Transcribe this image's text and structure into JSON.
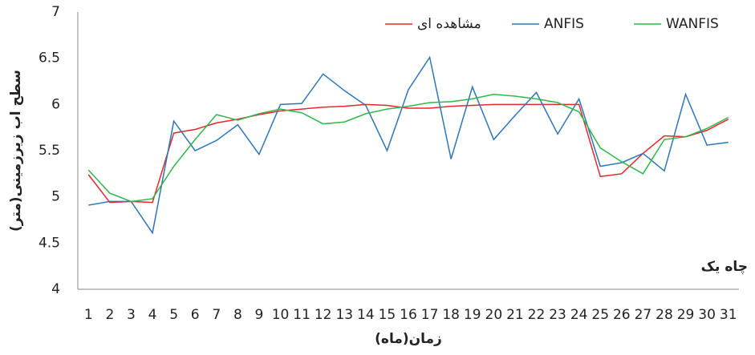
{
  "chart_data": {
    "type": "line",
    "annotation": "چاه یک",
    "x_label": "زمان(ماه)",
    "y_label": "سطح اب زیرزمینی(متر)",
    "categories": [
      "1",
      "2",
      "3",
      "4",
      "5",
      "6",
      "7",
      "8",
      "9",
      "10",
      "11",
      "12",
      "13",
      "14",
      "15",
      "16",
      "17",
      "18",
      "19",
      "20",
      "21",
      "22",
      "23",
      "24",
      "25",
      "26",
      "27",
      "28",
      "29",
      "30",
      "31"
    ],
    "series": [
      {
        "name": "مشاهده ای",
        "color": "#e8262b",
        "values": [
          5.24,
          4.94,
          4.95,
          4.94,
          5.69,
          5.73,
          5.8,
          5.84,
          5.89,
          5.93,
          5.95,
          5.97,
          5.98,
          6.0,
          5.99,
          5.96,
          5.96,
          5.98,
          5.99,
          6.0,
          6.0,
          6.0,
          6.0,
          6.0,
          5.22,
          5.25,
          5.47,
          5.66,
          5.65,
          5.72,
          5.84
        ]
      },
      {
        "name": "ANFIS",
        "color": "#2e75b6",
        "values": [
          4.91,
          4.95,
          4.95,
          4.61,
          5.82,
          5.5,
          5.61,
          5.78,
          5.46,
          6.0,
          6.01,
          6.33,
          6.15,
          5.99,
          5.5,
          6.16,
          6.51,
          5.41,
          6.19,
          5.62,
          5.88,
          6.13,
          5.68,
          6.06,
          5.33,
          5.37,
          5.47,
          5.28,
          6.11,
          5.56,
          5.59
        ]
      },
      {
        "name": "WANFIS",
        "color": "#2eb84a",
        "values": [
          5.29,
          5.04,
          4.95,
          4.98,
          5.33,
          5.62,
          5.89,
          5.83,
          5.9,
          5.95,
          5.91,
          5.79,
          5.81,
          5.9,
          5.95,
          5.98,
          6.02,
          6.03,
          6.06,
          6.11,
          6.09,
          6.06,
          6.02,
          5.92,
          5.53,
          5.38,
          5.25,
          5.62,
          5.65,
          5.74,
          5.86
        ]
      }
    ],
    "ylim": [
      4,
      7
    ],
    "yticks": [
      4,
      4.5,
      5,
      5.5,
      6,
      6.5,
      7
    ],
    "grid": false,
    "legend": "top-right"
  }
}
